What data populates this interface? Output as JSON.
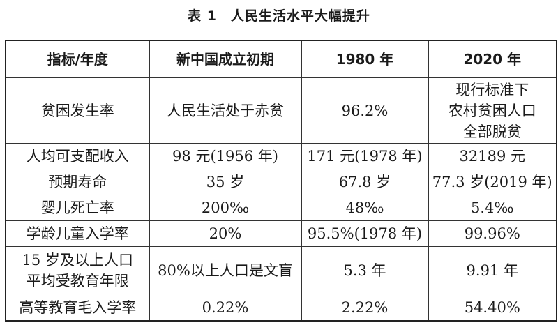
{
  "title": "表 1　人民生活水平大幅提升",
  "table": {
    "headers": [
      "指标/年度",
      "新中国成立初期",
      "1980 年",
      "2020 年"
    ],
    "rows": [
      [
        "贫困发生率",
        "人民生活处于赤贫",
        "96.2%",
        "现行标准下\n农村贫困人口\n全部脱贫"
      ],
      [
        "人均可支配收入",
        "98 元(1956 年)",
        "171 元(1978 年)",
        "32189 元"
      ],
      [
        "预期寿命",
        "35 岁",
        "67.8 岁",
        "77.3 岁(2019 年)"
      ],
      [
        "婴儿死亡率",
        "200‰",
        "48‰",
        "5.4‰"
      ],
      [
        "学龄儿童入学率",
        "20%",
        "95.5%(1978 年)",
        "99.96%"
      ],
      [
        "15 岁及以上人口\n平均受教育年限",
        "80%以上人口是文盲",
        "5.3 年",
        "9.91 年"
      ],
      [
        "高等教育毛入学率",
        "0.22%",
        "2.22%",
        "54.40%"
      ]
    ]
  }
}
